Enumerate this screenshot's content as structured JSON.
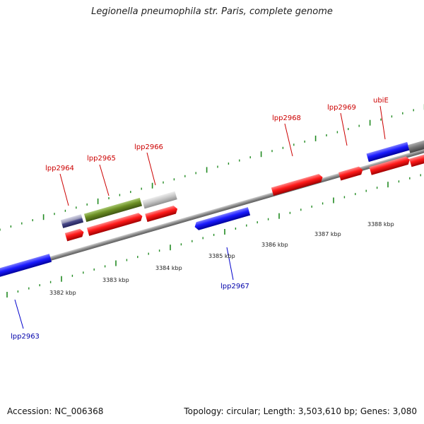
{
  "title": "Legionella pneumophila str. Paris, complete genome",
  "footer": {
    "accession": "Accession: NC_006368",
    "topology": "Topology: circular; Length: 3,503,610 bp; Genes: 3,080"
  },
  "colors": {
    "forward_label": "#cc0000",
    "reverse_label": "#0000aa",
    "tick": "#228b22",
    "backbone": "#888888"
  },
  "kbp_labels": [
    "3382 kbp",
    "3383 kbp",
    "3384 kbp",
    "3385 kbp",
    "3386 kbp",
    "3387 kbp",
    "3388 kbp"
  ],
  "gene_labels": [
    "lpp2963",
    "lpp2964",
    "lpp2965",
    "lpp2966",
    "lpp2967",
    "lpp2968",
    "lpp2969",
    "ubiE"
  ]
}
